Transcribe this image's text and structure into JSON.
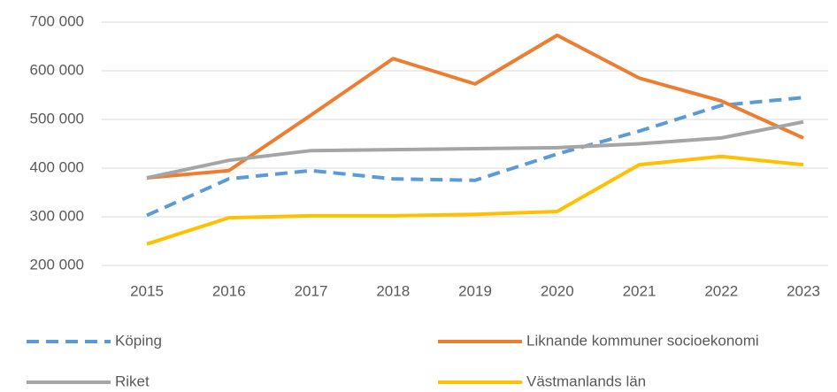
{
  "chart_data": {
    "type": "line",
    "categories": [
      "2015",
      "2016",
      "2017",
      "2018",
      "2019",
      "2020",
      "2021",
      "2022",
      "2023"
    ],
    "series": [
      {
        "name": "Köping",
        "color": "#5b9bd5",
        "dashed": true,
        "values": [
          303000,
          378000,
          395000,
          378000,
          375000,
          429000,
          476000,
          529000,
          545000
        ]
      },
      {
        "name": "Liknande kommuner socioekonomi",
        "color": "#ed7d31",
        "dashed": false,
        "values": [
          380000,
          395000,
          509000,
          625000,
          573000,
          673000,
          585000,
          538000,
          462000
        ]
      },
      {
        "name": "Riket",
        "color": "#a5a5a5",
        "dashed": false,
        "values": [
          380000,
          416000,
          436000,
          438000,
          440000,
          442000,
          450000,
          462000,
          495000
        ]
      },
      {
        "name": "Västmanlands län",
        "color": "#ffc000",
        "dashed": false,
        "values": [
          244000,
          298000,
          302000,
          302000,
          305000,
          311000,
          407000,
          424000,
          407000
        ]
      }
    ],
    "ylim": [
      200000,
      700000
    ],
    "yticks": [
      {
        "value": 200000,
        "label": "200 000"
      },
      {
        "value": 300000,
        "label": "300 000"
      },
      {
        "value": 400000,
        "label": "400 000"
      },
      {
        "value": 500000,
        "label": "500 000"
      },
      {
        "value": 600000,
        "label": "600 000"
      },
      {
        "value": 700000,
        "label": "700 000"
      }
    ],
    "grid": true,
    "legend": "bottom"
  }
}
